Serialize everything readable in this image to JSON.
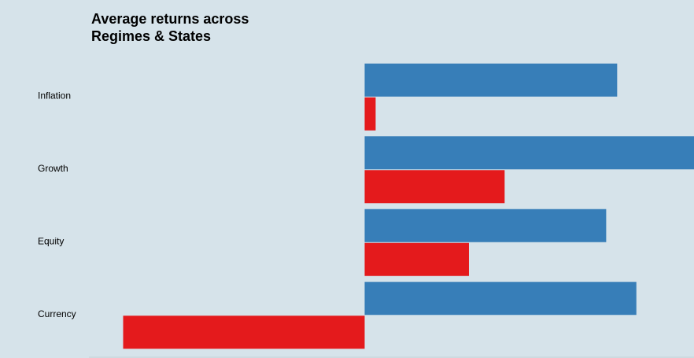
{
  "chart_data": {
    "type": "bar",
    "orientation": "horizontal",
    "title_lines": [
      "Average returns across",
      "Regimes & States"
    ],
    "categories": [
      "Inflation",
      "Growth",
      "Equity",
      "Currency"
    ],
    "series": [
      {
        "values": [
          0.92,
          1.2,
          0.88,
          0.99
        ]
      },
      {
        "values": [
          0.04,
          0.51,
          0.38,
          -0.88
        ]
      }
    ],
    "xlim": [
      -1.3,
      1.2
    ],
    "grid": false,
    "legend": "none",
    "colors": [
      "#377eb8",
      "#e41a1c"
    ]
  }
}
